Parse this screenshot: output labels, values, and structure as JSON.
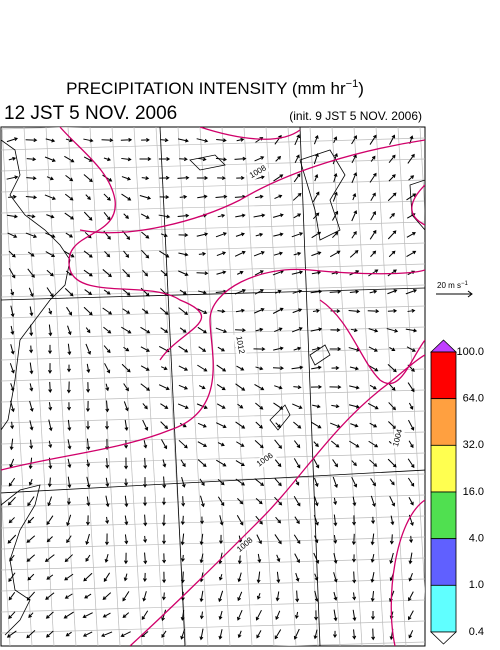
{
  "header": {
    "title": "PRECIPITATION INTENSITY (mm hr",
    "title_exponent": "−1",
    "title_close": ")",
    "valid_time": "12 JST 5 NOV. 2006",
    "init_time": "(init. 9 JST 5 NOV. 2006)"
  },
  "contour_labels": [
    "1008",
    "1012",
    "1004",
    "1006",
    "1008"
  ],
  "wind_scale": {
    "label": "20 m s",
    "exponent": "−1"
  },
  "colorbar": {
    "labels": [
      "100.0",
      "64.0",
      "32.0",
      "16.0",
      "4.0",
      "1.0",
      "0.4"
    ],
    "colors": [
      "#ff0000",
      "#ffa040",
      "#ffff50",
      "#50e050",
      "#6060ff",
      "#60ffff"
    ],
    "top_color": "#c040ff",
    "bottom_color": "#ffffff"
  }
}
